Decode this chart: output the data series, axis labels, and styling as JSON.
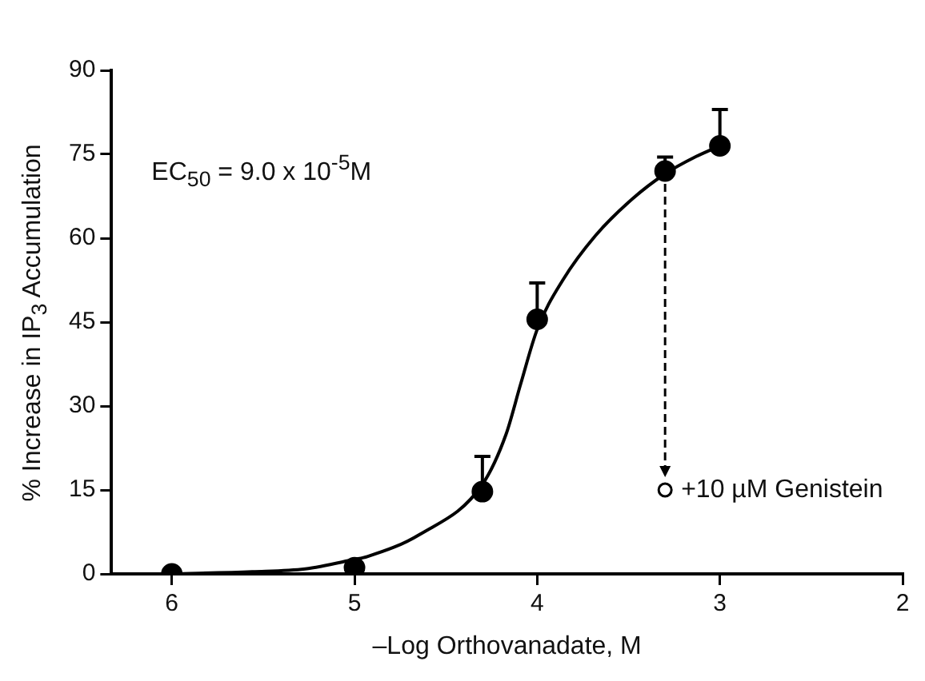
{
  "chart_data": {
    "type": "scatter",
    "xlabel": "–Log Orthovanadate, M",
    "ylabel": "% Increase in IP$_{3}$ Accumulation",
    "xlim": [
      6.33,
      2
    ],
    "xticks": [
      6,
      5,
      4,
      3,
      2
    ],
    "ylim": [
      0,
      90
    ],
    "yticks": [
      0,
      15,
      30,
      45,
      60,
      75,
      90
    ],
    "grid": false,
    "legend": false,
    "marker": "circle",
    "annotations": [
      "EC$_{50}$ = 9.0 x 10$^{-5}$M",
      {
        "text": "+10 µM Genistein",
        "x": 3.3,
        "y": 15
      }
    ],
    "series": [
      {
        "type": "scatter",
        "color": "#000000",
        "x": [
          6,
          5,
          4.3,
          4,
          3.3,
          3
        ],
        "values": [
          0,
          1.1,
          14.7,
          45.5,
          72,
          76.5
        ],
        "errors": [
          null,
          null,
          [
            14.7,
            21
          ],
          [
            45.5,
            52
          ],
          [
            72,
            74.5
          ],
          [
            76.5,
            83
          ]
        ]
      },
      {
        "type": "line",
        "color": "#000000",
        "marker": "none",
        "line_style": "solid",
        "x": [
          6,
          5.56,
          5.27,
          5,
          4.93,
          4.64,
          4.3,
          4.17,
          4.09,
          4,
          3.86,
          3.68,
          3.48,
          3.3,
          3.13,
          3
        ],
        "values": [
          0,
          0.4,
          0.9,
          2.6,
          3.1,
          7.1,
          16,
          25,
          34,
          43.7,
          52.5,
          60.5,
          67,
          71.5,
          74.6,
          76.5
        ]
      },
      {
        "type": "scatter",
        "color": "#ffffff",
        "x": [
          3.3
        ],
        "values": [
          15
        ]
      }
    ]
  }
}
